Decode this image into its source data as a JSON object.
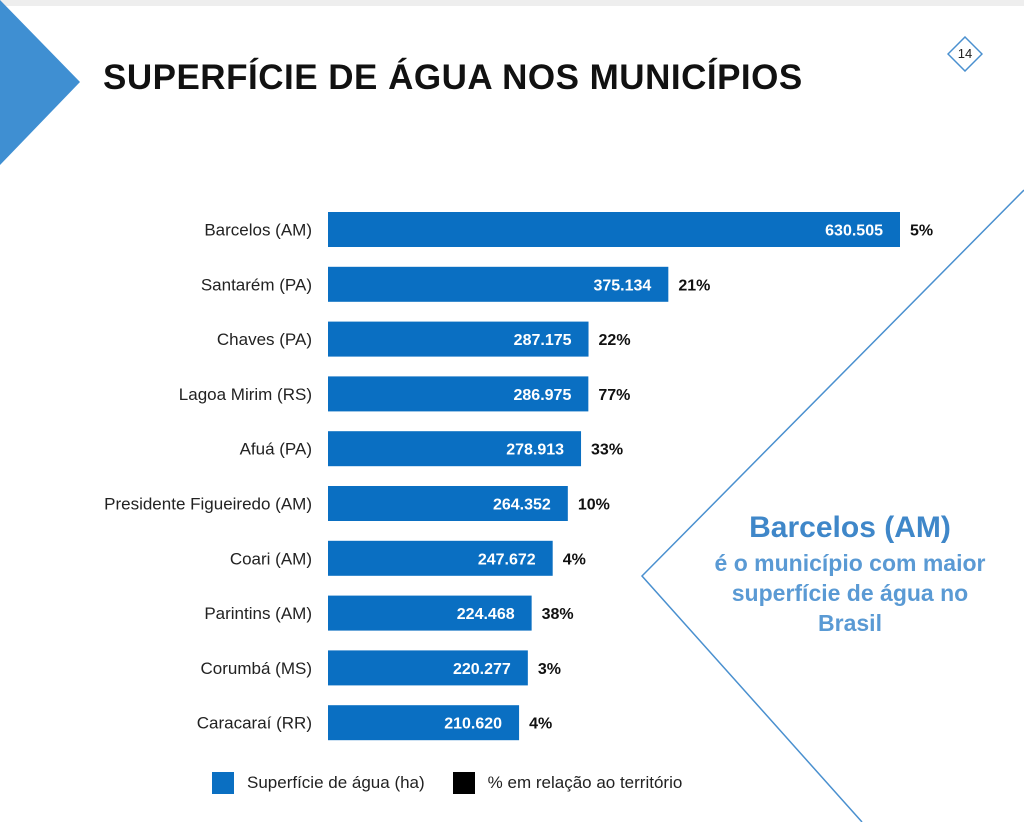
{
  "page": {
    "title": "SUPERFÍCIE DE ÁGUA NOS MUNICÍPIOS",
    "page_number": "14"
  },
  "callout": {
    "highlight": "Barcelos (AM)",
    "text": "é o município com maior superfície de água no Brasil"
  },
  "legend": [
    {
      "label": "Superfície de água (ha)",
      "color": "#0a6fc2"
    },
    {
      "label": "% em relação ao território",
      "color": "#000000"
    }
  ],
  "colors": {
    "bar": "#0a6fc2",
    "accent_triangle": "#3f8fd2",
    "callout_text": "#4a90cf"
  },
  "chart_data": {
    "type": "bar",
    "orientation": "horizontal",
    "categories": [
      "Barcelos (AM)",
      "Santarém (PA)",
      "Chaves (PA)",
      "Lagoa Mirim (RS)",
      "Afuá (PA)",
      "Presidente Figueiredo (AM)",
      "Coari (AM)",
      "Parintins (AM)",
      "Corumbá (MS)",
      "Caracaraí (RR)"
    ],
    "series": [
      {
        "name": "Superfície de água (ha)",
        "values": [
          630505,
          375134,
          287175,
          286975,
          278913,
          264352,
          247672,
          224468,
          220277,
          210620
        ],
        "value_labels": [
          "630.505",
          "375.134",
          "287.175",
          "286.975",
          "278.913",
          "264.352",
          "247.672",
          "224.468",
          "220.277",
          "210.620"
        ]
      },
      {
        "name": "% em relação ao território",
        "values": [
          5,
          21,
          22,
          77,
          33,
          10,
          4,
          38,
          3,
          4
        ],
        "value_labels": [
          "5%",
          "21%",
          "22%",
          "77%",
          "33%",
          "10%",
          "4%",
          "38%",
          "3%",
          "4%"
        ]
      }
    ],
    "xlim": [
      0,
      630505
    ],
    "grid": false,
    "legend_position": "bottom"
  }
}
